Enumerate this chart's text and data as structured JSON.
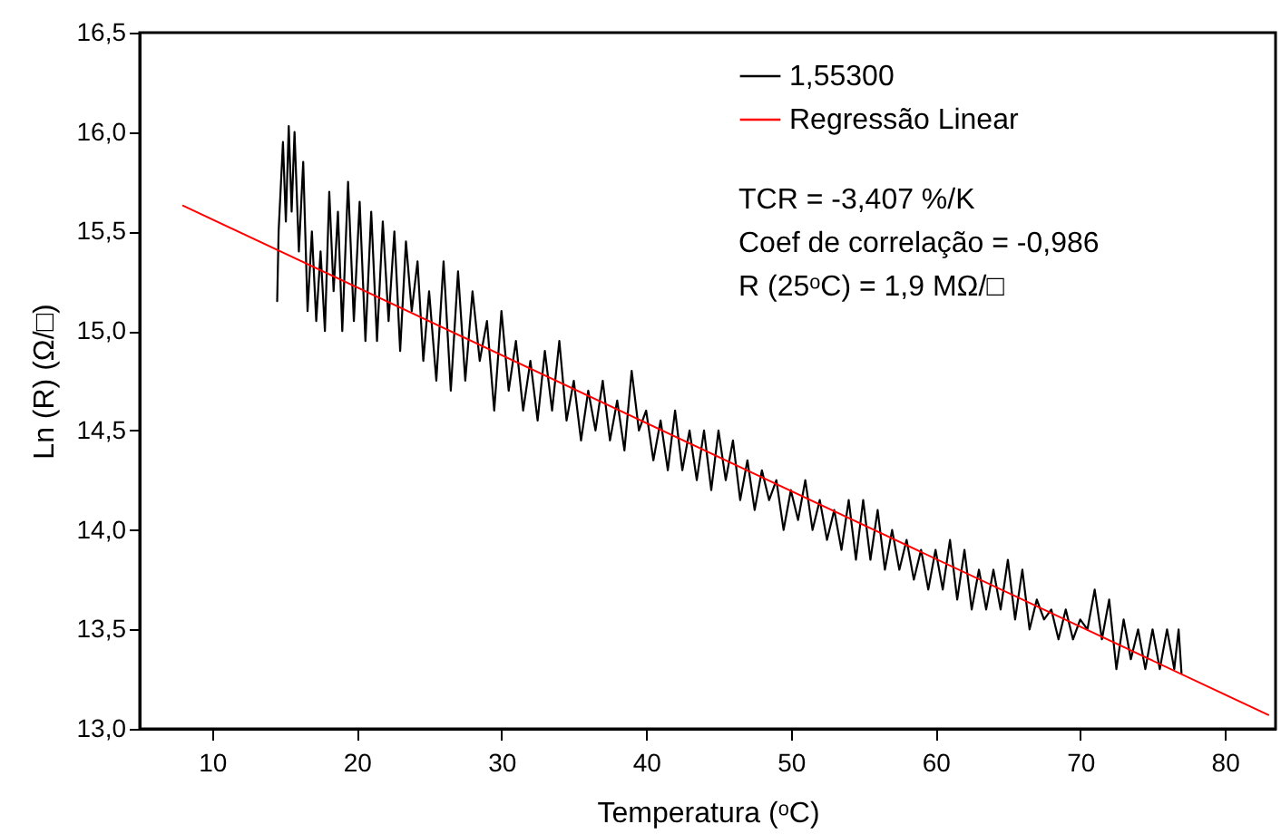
{
  "chart_data": {
    "type": "line",
    "xlabel": "Temperatura (ᵒC)",
    "ylabel": "Ln (R) (Ω/□)",
    "xlim": [
      5,
      83.5
    ],
    "xticks": [
      10,
      20,
      30,
      40,
      50,
      60,
      70,
      80
    ],
    "ylim": [
      13.0,
      16.5
    ],
    "yticks": [
      {
        "value": 13.0,
        "label": "13,0"
      },
      {
        "value": 13.5,
        "label": "13,5"
      },
      {
        "value": 14.0,
        "label": "14,0"
      },
      {
        "value": 14.5,
        "label": "14,5"
      },
      {
        "value": 15.0,
        "label": "15,0"
      },
      {
        "value": 15.5,
        "label": "15,5"
      },
      {
        "value": 16.0,
        "label": "16,0"
      },
      {
        "value": 16.5,
        "label": "16,5"
      }
    ],
    "grid": false,
    "legend": "top",
    "line_style": "solid",
    "marker": "none",
    "annotations": [
      "TCR = -3,407 %/K",
      "Coef de correlação = -0,986",
      "R (25ᵒC) = 1,9 MΩ/□"
    ],
    "series": [
      {
        "name": "1,55300",
        "color": "#000000",
        "x": [
          14.5,
          14.6,
          14.9,
          15.1,
          15.3,
          15.5,
          15.7,
          16.0,
          16.3,
          16.6,
          16.9,
          17.2,
          17.5,
          17.8,
          18.1,
          18.4,
          18.7,
          19.0,
          19.4,
          19.8,
          20.2,
          20.6,
          21.0,
          21.4,
          21.8,
          22.2,
          22.6,
          23.0,
          23.4,
          23.8,
          24.2,
          24.6,
          25.0,
          25.5,
          26.0,
          26.5,
          27.0,
          27.5,
          28.0,
          28.5,
          29.0,
          29.5,
          30.0,
          30.5,
          31.0,
          31.5,
          32.0,
          32.5,
          33.0,
          33.5,
          34.0,
          34.5,
          35.0,
          35.5,
          36.0,
          36.5,
          37.0,
          37.5,
          38.0,
          38.5,
          39.0,
          39.5,
          40.0,
          40.5,
          41.0,
          41.5,
          42.0,
          42.5,
          43.0,
          43.5,
          44.0,
          44.5,
          45.0,
          45.5,
          46.0,
          46.5,
          47.0,
          47.5,
          48.0,
          48.5,
          49.0,
          49.5,
          50.0,
          50.5,
          51.0,
          51.5,
          52.0,
          52.5,
          53.0,
          53.5,
          54.0,
          54.5,
          55.0,
          55.5,
          56.0,
          56.5,
          57.0,
          57.5,
          58.0,
          58.5,
          59.0,
          59.5,
          60.0,
          60.5,
          61.0,
          61.5,
          62.0,
          62.5,
          63.0,
          63.5,
          64.0,
          64.5,
          65.0,
          65.5,
          66.0,
          66.5,
          67.0,
          67.5,
          68.0,
          68.5,
          69.0,
          69.5,
          70.0,
          70.5,
          71.0,
          71.5,
          72.0,
          72.5,
          73.0,
          73.5,
          74.0,
          74.5,
          75.0,
          75.5,
          76.0,
          76.5,
          76.8,
          77.0
        ],
        "values": [
          15.15,
          15.5,
          15.95,
          15.55,
          16.03,
          15.6,
          16.0,
          15.4,
          15.85,
          15.1,
          15.5,
          15.05,
          15.4,
          15.0,
          15.7,
          15.2,
          15.6,
          15.0,
          15.75,
          15.05,
          15.65,
          14.95,
          15.6,
          14.95,
          15.55,
          15.05,
          15.5,
          14.9,
          15.45,
          15.1,
          15.35,
          14.85,
          15.2,
          14.75,
          15.35,
          14.7,
          15.3,
          14.75,
          15.2,
          14.85,
          15.05,
          14.6,
          15.1,
          14.7,
          14.95,
          14.6,
          14.85,
          14.55,
          14.9,
          14.6,
          14.95,
          14.55,
          14.75,
          14.45,
          14.7,
          14.5,
          14.75,
          14.45,
          14.65,
          14.4,
          14.8,
          14.5,
          14.6,
          14.35,
          14.55,
          14.3,
          14.6,
          14.3,
          14.5,
          14.25,
          14.5,
          14.2,
          14.5,
          14.25,
          14.45,
          14.15,
          14.35,
          14.1,
          14.3,
          14.15,
          14.25,
          14.0,
          14.2,
          14.05,
          14.25,
          14.0,
          14.15,
          13.95,
          14.1,
          13.9,
          14.15,
          13.85,
          14.15,
          13.85,
          14.1,
          13.8,
          14.0,
          13.8,
          13.95,
          13.75,
          13.9,
          13.7,
          13.9,
          13.7,
          13.95,
          13.65,
          13.9,
          13.6,
          13.8,
          13.6,
          13.8,
          13.6,
          13.85,
          13.55,
          13.8,
          13.5,
          13.65,
          13.55,
          13.6,
          13.45,
          13.6,
          13.45,
          13.55,
          13.5,
          13.7,
          13.45,
          13.65,
          13.3,
          13.55,
          13.35,
          13.5,
          13.3,
          13.5,
          13.3,
          13.5,
          13.3,
          13.5,
          13.28
        ]
      },
      {
        "name": "Regressão Linear",
        "color": "#ff0000",
        "x": [
          8,
          83
        ],
        "values": [
          15.63,
          13.07
        ]
      }
    ]
  }
}
